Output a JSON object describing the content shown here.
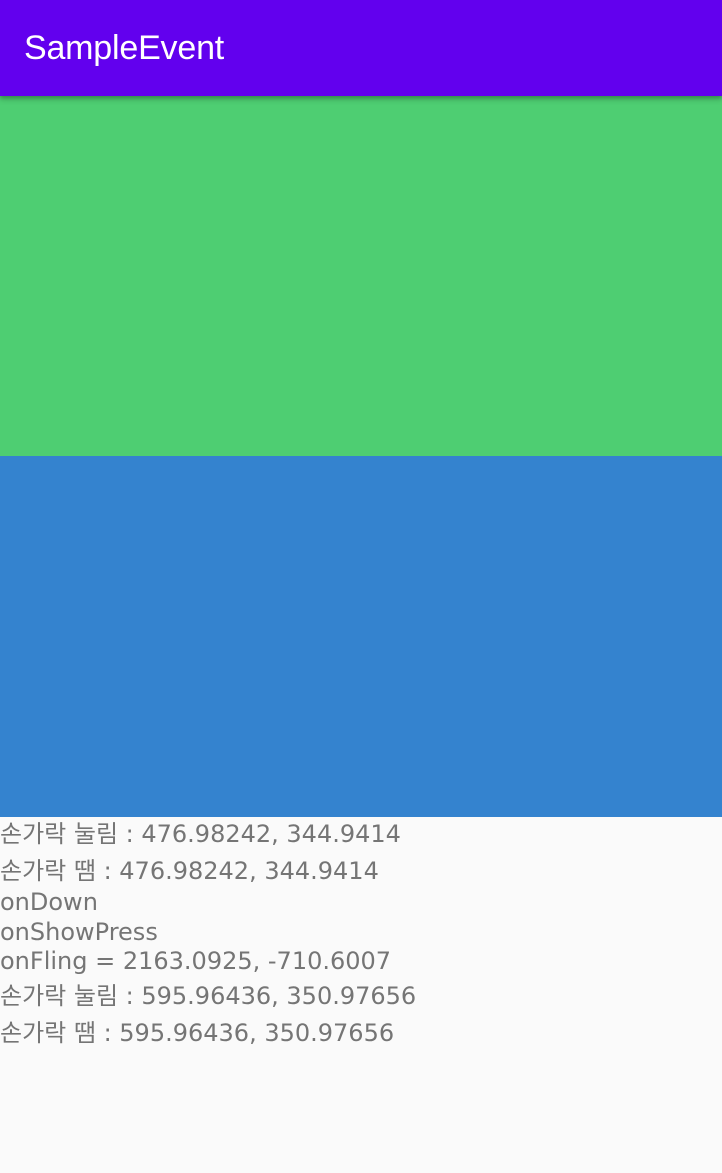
{
  "app_bar": {
    "title": "SampleEvent",
    "background": "#6200ee"
  },
  "views": {
    "touch_view_color": "#4ece72",
    "gesture_view_color": "#3483cf"
  },
  "log": {
    "lines": [
      "손가락 눌림 :  476.98242, 344.9414",
      "손가락 땜 :  476.98242, 344.9414",
      "onDown",
      "onShowPress",
      "onFling = 2163.0925, -710.6007",
      "손가락 눌림 :  595.96436, 350.97656",
      "손가락 땜 :  595.96436, 350.97656"
    ]
  }
}
